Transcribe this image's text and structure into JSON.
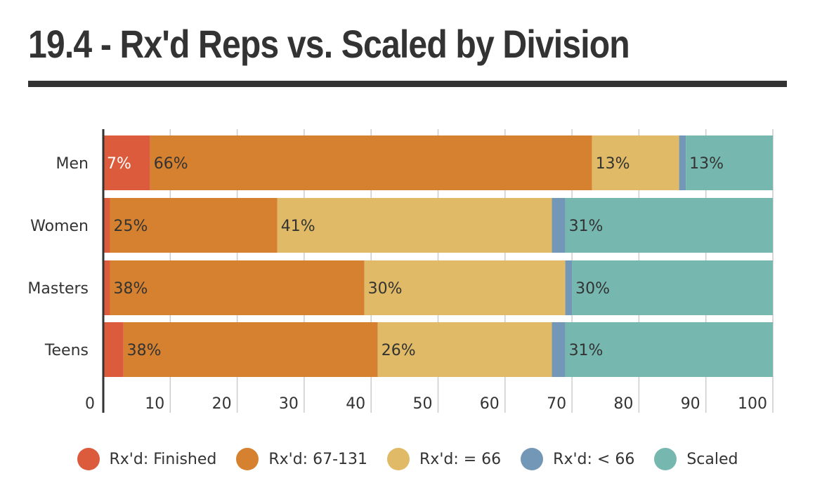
{
  "title": "19.4 - Rx'd Reps vs. Scaled by Division",
  "colors": {
    "finished": "#dc5b3c",
    "rx_67_131": "#d6812f",
    "rx_66": "#e0ba66",
    "rx_lt_66": "#7398b7",
    "scaled": "#76b8b0",
    "text": "#333333",
    "grid": "#cccccc"
  },
  "chart_data": {
    "type": "bar",
    "orientation": "horizontal",
    "stacked": true,
    "categories": [
      "Men",
      "Women",
      "Masters",
      "Teens"
    ],
    "series": [
      {
        "name": "Rx'd: Finished",
        "color_key": "finished",
        "values": [
          7,
          1,
          1,
          3
        ],
        "labels": [
          "7%",
          "",
          "",
          ""
        ]
      },
      {
        "name": "Rx'd: 67-131",
        "color_key": "rx_67_131",
        "values": [
          66,
          25,
          38,
          38
        ],
        "labels": [
          "66%",
          "25%",
          "38%",
          "38%"
        ]
      },
      {
        "name": "Rx'd: = 66",
        "color_key": "rx_66",
        "values": [
          13,
          41,
          30,
          26
        ],
        "labels": [
          "13%",
          "41%",
          "30%",
          "26%"
        ]
      },
      {
        "name": "Rx'd: < 66",
        "color_key": "rx_lt_66",
        "values": [
          1,
          2,
          1,
          2
        ],
        "labels": [
          "",
          "",
          "",
          ""
        ]
      },
      {
        "name": "Scaled",
        "color_key": "scaled",
        "values": [
          13,
          31,
          30,
          31
        ],
        "labels": [
          "13%",
          "31%",
          "30%",
          "31%"
        ]
      }
    ],
    "xlim": [
      0,
      100
    ],
    "xticks": [
      0,
      10,
      20,
      30,
      40,
      50,
      60,
      70,
      80,
      90,
      100
    ],
    "grid": true,
    "legend_position": "bottom"
  }
}
